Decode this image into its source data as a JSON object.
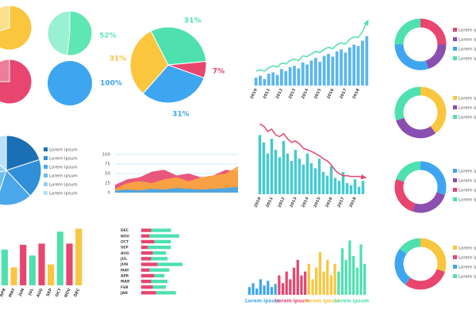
{
  "chart_data": [
    {
      "type": "pie",
      "values": [
        70,
        30
      ],
      "colors": [
        "#f9c63e",
        "#fbe08c"
      ]
    },
    {
      "type": "pie",
      "values": [
        52,
        48
      ],
      "colors": [
        "#5ee6b4",
        "#9af0d2"
      ],
      "value_labels": [
        "52%",
        null
      ]
    },
    {
      "type": "pie",
      "values": [
        75,
        25
      ],
      "colors": [
        "#e8456f",
        "#f07c9a"
      ]
    },
    {
      "type": "pie",
      "values": [
        100
      ],
      "colors": [
        "#3ea6f0"
      ],
      "value_labels": [
        "100%"
      ]
    },
    {
      "type": "pie",
      "values": [
        31,
        7,
        31,
        31
      ],
      "colors": [
        "#4fe0b0",
        "#e8456f",
        "#3ea6f0",
        "#f9c63e"
      ],
      "value_labels": [
        "31%",
        "7%",
        "31%",
        "31%"
      ]
    },
    {
      "type": "bar",
      "categories": [
        "2010",
        null,
        null,
        "2011",
        null,
        null,
        "2012",
        null,
        null,
        "2013",
        null,
        null,
        "2014",
        null,
        null,
        "2015",
        null,
        null,
        "2016",
        null,
        null,
        "2017",
        null,
        null,
        "2018",
        null,
        null
      ],
      "series": [
        {
          "type": "bar",
          "color": "#5bb6ee",
          "values": [
            12,
            15,
            10,
            18,
            20,
            16,
            25,
            22,
            28,
            30,
            26,
            35,
            32,
            38,
            42,
            36,
            45,
            48,
            44,
            52,
            55,
            50,
            58,
            62,
            60,
            68,
            75
          ]
        },
        {
          "type": "line",
          "color": "#4fe0b0",
          "values": [
            22,
            24,
            22,
            27,
            30,
            28,
            34,
            33,
            38,
            40,
            38,
            45,
            44,
            48,
            52,
            50,
            55,
            58,
            56,
            62,
            65,
            63,
            70,
            74,
            73,
            82,
            95
          ]
        }
      ]
    },
    {
      "type": "donut",
      "categories": [
        "Lorem ipsum",
        "Lorem ipsum",
        "Lorem ipsum",
        "Lorem ipsum"
      ],
      "values": [
        25,
        20,
        30,
        25
      ],
      "colors": [
        "#e8456f",
        "#8a4fb0",
        "#3ea6f0",
        "#4fe0b0"
      ]
    },
    {
      "type": "donut",
      "categories": [
        "Lorem ipsum",
        "Lorem ipsum",
        "Lorem ipsum"
      ],
      "values": [
        40,
        30,
        30
      ],
      "colors": [
        "#f9c63e",
        "#8a4fb0",
        "#4fe0b0"
      ]
    },
    {
      "type": "donut",
      "categories": [
        "Lorem ipsum",
        "Lorem ipsum",
        "Lorem ipsum",
        "Lorem ipsum"
      ],
      "values": [
        30,
        25,
        25,
        20
      ],
      "colors": [
        "#3ea6f0",
        "#8a4fb0",
        "#e8456f",
        "#4fe0b0"
      ]
    },
    {
      "type": "donut",
      "categories": [
        "Lorem ipsum",
        "Lorem ipsum",
        "Lorem ipsum",
        "Lorem ipsum"
      ],
      "values": [
        30,
        30,
        25,
        15
      ],
      "colors": [
        "#f9c63e",
        "#e8456f",
        "#3ea6f0",
        "#4fe0b0"
      ]
    },
    {
      "type": "pie",
      "categories": [
        "Lorem ipsum",
        "Lorem ipsum",
        "Lorem ipsum",
        "Lorem ipsum",
        "Lorem ipsum",
        "Lorem ipsum"
      ],
      "values": [
        20,
        18,
        17,
        16,
        15,
        14
      ],
      "colors": [
        "#1a6fb5",
        "#2f8fd8",
        "#4aa8ea",
        "#6dbcf0",
        "#93cff4",
        "#b8e0f8"
      ]
    },
    {
      "type": "area",
      "ylim": [
        0,
        100
      ],
      "yticks": [
        0,
        25,
        50,
        75,
        100
      ],
      "grid": true,
      "series": [
        {
          "color": "#e8456f",
          "values": [
            20,
            35,
            40,
            55,
            60,
            45,
            50,
            40,
            45,
            60,
            55
          ]
        },
        {
          "color": "#f9a83e",
          "values": [
            10,
            25,
            30,
            25,
            35,
            40,
            30,
            40,
            45,
            50,
            70
          ]
        },
        {
          "color": "#3ea6f0",
          "values": [
            5,
            8,
            6,
            10,
            8,
            12,
            10,
            8,
            10,
            12,
            15
          ]
        }
      ]
    },
    {
      "type": "bar",
      "categories": [
        "2010",
        null,
        null,
        "2011",
        null,
        null,
        "2012",
        null,
        null,
        "2013",
        null,
        null,
        "2014",
        null,
        null,
        "2015",
        null,
        null,
        "2016",
        null,
        null,
        "2017",
        null,
        null,
        "2018",
        null,
        null
      ],
      "series": [
        {
          "type": "bar",
          "color": "#47c9d0",
          "values": [
            80,
            70,
            55,
            75,
            60,
            50,
            72,
            55,
            45,
            60,
            48,
            40,
            55,
            42,
            35,
            48,
            30,
            25,
            38,
            22,
            18,
            30,
            15,
            12,
            20,
            10,
            18
          ]
        },
        {
          "type": "line",
          "color": "#e8456f",
          "values": [
            95,
            92,
            85,
            88,
            80,
            78,
            82,
            75,
            70,
            72,
            68,
            62,
            60,
            58,
            55,
            52,
            48,
            45,
            40,
            32,
            28,
            25,
            25,
            24,
            24,
            24,
            23
          ]
        }
      ]
    },
    {
      "type": "bar",
      "categories": [
        "APR",
        "MAY",
        "JUN",
        "JUL",
        "AUG",
        "SEP",
        "OCT",
        "NOV",
        "DEC"
      ],
      "values": [
        60,
        30,
        68,
        50,
        70,
        35,
        90,
        70,
        95
      ],
      "colors": [
        "#4fe0b0",
        "#f9c63e",
        "#e8456f",
        "#4fe0b0",
        "#e8456f",
        "#f9c63e",
        "#4fe0b0",
        "#e8456f",
        "#f9c63e"
      ]
    },
    {
      "type": "hbar",
      "categories": [
        "DEC",
        "NOV",
        "OCT",
        "SEP",
        "AUG",
        "JUL",
        "JUN",
        "MAY",
        "APR",
        "MAR",
        "FEB",
        "JAN"
      ],
      "series": [
        {
          "color": "#e8456f",
          "values": [
            6,
            5,
            8,
            4,
            7,
            6,
            10,
            5,
            8,
            6,
            7,
            9
          ]
        },
        {
          "color": "#4fe0b0",
          "values": [
            12,
            18,
            10,
            14,
            8,
            10,
            15,
            12,
            6,
            10,
            8,
            12
          ]
        }
      ]
    },
    {
      "type": "bar",
      "series": [
        {
          "name": "Lorem ipsum",
          "color": "#3ea6f0",
          "values": [
            10,
            15,
            8,
            20,
            12,
            18,
            10,
            14
          ]
        },
        {
          "name": "Lorem ipsum",
          "color": "#e8456f",
          "values": [
            25,
            15,
            30,
            20,
            35,
            45,
            25,
            30
          ]
        },
        {
          "name": "Lorem ipsum",
          "color": "#f9c63e",
          "values": [
            40,
            20,
            35,
            55,
            30,
            45,
            25,
            40
          ]
        },
        {
          "name": "Lorem ipsum",
          "color": "#4fe0b0",
          "values": [
            30,
            60,
            45,
            70,
            50,
            35,
            65,
            40
          ]
        }
      ]
    }
  ]
}
